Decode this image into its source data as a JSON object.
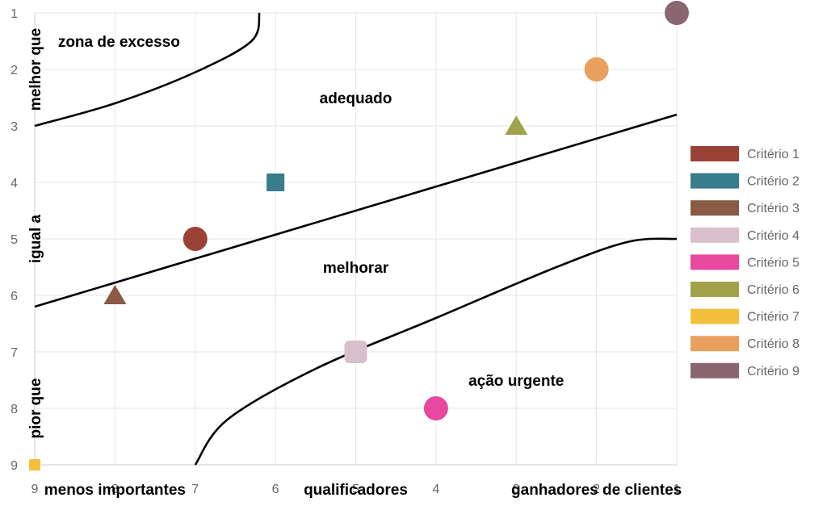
{
  "chart_data": {
    "type": "scatter",
    "xlim": [
      9,
      1
    ],
    "ylim": [
      9,
      1
    ],
    "x_ticks": [
      "9",
      "8",
      "7",
      "6",
      "5",
      "4",
      "3",
      "2",
      "1"
    ],
    "y_ticks": [
      "1",
      "2",
      "3",
      "4",
      "5",
      "6",
      "7",
      "8",
      "9"
    ],
    "grid": true,
    "legend_position": "right",
    "series": [
      {
        "name": "Critério 1",
        "x": 7,
        "y": 5,
        "shape": "circle",
        "color": "#9b4236"
      },
      {
        "name": "Critério 2",
        "x": 6,
        "y": 4,
        "shape": "square",
        "color": "#377d8c"
      },
      {
        "name": "Critério 3",
        "x": 8,
        "y": 6,
        "shape": "triangle",
        "color": "#8a5a44"
      },
      {
        "name": "Critério 4",
        "x": 5,
        "y": 7,
        "shape": "rounded-square",
        "color": "#d9bfcc"
      },
      {
        "name": "Critério 5",
        "x": 4,
        "y": 8,
        "shape": "circle",
        "color": "#e8489e"
      },
      {
        "name": "Critério 6",
        "x": 3,
        "y": 3,
        "shape": "triangle",
        "color": "#a2a24a"
      },
      {
        "name": "Critério 7",
        "x": 9,
        "y": 9,
        "shape": "square",
        "color": "#f3c03e"
      },
      {
        "name": "Critério 8",
        "x": 2,
        "y": 2,
        "shape": "circle",
        "color": "#e9a05c"
      },
      {
        "name": "Critério 9",
        "x": 1,
        "y": 1,
        "shape": "circle",
        "color": "#896670"
      }
    ],
    "boundaries": [
      {
        "name": "excess-curve",
        "points": [
          [
            9,
            3
          ],
          [
            8,
            2.6
          ],
          [
            7,
            2.05
          ],
          [
            6.3,
            1.5
          ],
          [
            6.2,
            1
          ]
        ]
      },
      {
        "name": "adequate-line",
        "points": [
          [
            9,
            6.2
          ],
          [
            1,
            2.8
          ]
        ]
      },
      {
        "name": "urgent-curve",
        "points": [
          [
            7,
            9
          ],
          [
            6.6,
            8.2
          ],
          [
            5.5,
            7.3
          ],
          [
            4,
            6.4
          ],
          [
            2.5,
            5.5
          ],
          [
            1.6,
            5.05
          ],
          [
            1,
            5
          ]
        ]
      }
    ],
    "zone_labels": [
      {
        "text": "zona de excesso",
        "x": 7.95,
        "y": 1.5
      },
      {
        "text": "adequado",
        "x": 5,
        "y": 2.5
      },
      {
        "text": "melhorar",
        "x": 5,
        "y": 5.5
      },
      {
        "text": "ação urgente",
        "x": 3,
        "y": 7.5
      }
    ],
    "x_category_labels": [
      {
        "text": "menos importantes",
        "x": 8
      },
      {
        "text": "qualificadores",
        "x": 5
      },
      {
        "text": "ganhadores de clientes",
        "x": 2
      }
    ],
    "y_category_labels": [
      {
        "text": "melhor que",
        "y": 2
      },
      {
        "text": "igual a",
        "y": 5
      },
      {
        "text": "pior que",
        "y": 8
      }
    ]
  }
}
